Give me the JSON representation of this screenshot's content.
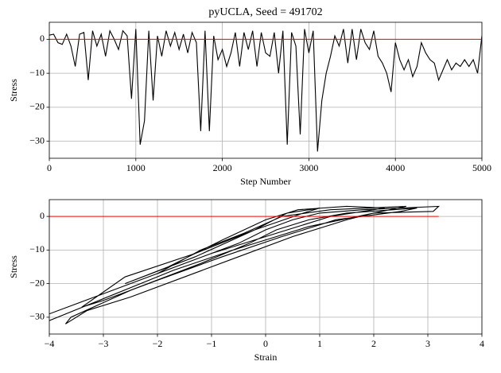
{
  "chart_data": [
    {
      "type": "line",
      "title": "pyUCLA, Seed = 491702",
      "xlabel": "Step Number",
      "ylabel": "Stress",
      "xlim": [
        0,
        5000
      ],
      "ylim": [
        -35,
        5
      ],
      "xticks": [
        0,
        1000,
        2000,
        3000,
        4000,
        5000
      ],
      "yticks": [
        {
          "value": -30,
          "label": "−30"
        },
        {
          "value": -20,
          "label": "−20"
        },
        {
          "value": -10,
          "label": "−10"
        },
        0
      ],
      "grid": true,
      "series": [
        {
          "color": "#000000",
          "x": [
            0,
            50,
            100,
            150,
            200,
            250,
            300,
            350,
            400,
            450,
            500,
            550,
            600,
            650,
            700,
            750,
            800,
            850,
            900,
            950,
            1000,
            1050,
            1100,
            1150,
            1200,
            1250,
            1300,
            1350,
            1400,
            1450,
            1500,
            1550,
            1600,
            1650,
            1700,
            1750,
            1800,
            1850,
            1900,
            1950,
            2000,
            2050,
            2100,
            2150,
            2200,
            2250,
            2300,
            2350,
            2400,
            2450,
            2500,
            2550,
            2600,
            2650,
            2700,
            2750,
            2800,
            2850,
            2900,
            2950,
            3000,
            3050,
            3100,
            3150,
            3200,
            3250,
            3300,
            3350,
            3400,
            3450,
            3500,
            3550,
            3600,
            3650,
            3700,
            3750,
            3800,
            3850,
            3900,
            3950,
            4000,
            4050,
            4100,
            4150,
            4200,
            4250,
            4300,
            4350,
            4400,
            4450,
            4500,
            4550,
            4600,
            4650,
            4700,
            4750,
            4800,
            4850,
            4900,
            4950,
            5000
          ],
          "values": [
            1.2,
            1.5,
            -1,
            -1.5,
            1.5,
            -2,
            -8,
            1.5,
            2,
            -12,
            2.5,
            -2,
            1.5,
            -5,
            2.5,
            0,
            -3,
            2.5,
            1,
            -17.5,
            3,
            -31,
            -24,
            2.5,
            -18,
            1,
            -5,
            2.5,
            -2,
            2,
            -3,
            1.5,
            -4,
            2,
            -1,
            -27,
            2.5,
            -27,
            1,
            -6,
            -3,
            -8,
            -4,
            2,
            -8,
            2,
            -3,
            2.5,
            -8,
            2,
            -4,
            -5,
            2,
            -10,
            2.5,
            -31,
            2,
            -2,
            -28,
            3,
            -4,
            2.5,
            -33,
            -18,
            -10,
            -5,
            1,
            -2,
            3,
            -7,
            3,
            -6,
            3,
            -1,
            -3,
            2.5,
            -5,
            -7,
            -10,
            -15.5,
            -1,
            -6,
            -9,
            -6,
            -11,
            -8,
            -1,
            -4,
            -6,
            -7,
            -12,
            -9,
            -6,
            -9,
            -7,
            -8,
            -6,
            -8,
            -6,
            -10,
            1
          ]
        },
        {
          "color": "#ff0000",
          "x": [
            0,
            5000
          ],
          "values": [
            0,
            0
          ]
        }
      ]
    },
    {
      "type": "line",
      "xlabel": "Strain",
      "ylabel": "Stress",
      "xlim": [
        -4,
        4
      ],
      "ylim": [
        -35,
        5
      ],
      "xticks": [
        {
          "value": -4,
          "label": "−4"
        },
        {
          "value": -3,
          "label": "−3"
        },
        {
          "value": -2,
          "label": "−2"
        },
        {
          "value": -1,
          "label": "−1"
        },
        0,
        1,
        2,
        3,
        4
      ],
      "yticks": [
        {
          "value": -30,
          "label": "−30"
        },
        {
          "value": -20,
          "label": "−20"
        },
        {
          "value": -10,
          "label": "−10"
        },
        0
      ],
      "grid": true,
      "series": [
        {
          "color": "#000000",
          "x": [
            -4,
            -2.5,
            -1.5,
            -0.5,
            0,
            0.5,
            1,
            1.8,
            3.2,
            3.1,
            2,
            1.5,
            0.5,
            -0.5,
            -1.5,
            -2.5,
            -3.3,
            -3.7,
            -3.6,
            -2.5,
            -1.2,
            -0.3,
            0.2,
            0.8,
            1.5,
            2.8,
            2.5,
            1.3,
            0.3,
            -0.8,
            -2,
            -3,
            -3.4,
            -2.6,
            -1.3,
            -0.2,
            0.4,
            1,
            0.7,
            -0.2,
            -1.3,
            -2.6,
            -1.8,
            -0.8,
            0,
            0.6,
            1.5,
            2.2,
            1.2,
            0,
            -1,
            -2,
            -1.2,
            -0.4,
            0.3,
            1.2,
            2.6,
            2,
            0.8,
            -0.6,
            -1.7,
            -4
          ],
          "values": [
            -29,
            -20,
            -14,
            -8,
            -4,
            -1,
            1,
            2,
            3,
            1.5,
            1,
            -1,
            -6,
            -12,
            -18,
            -24,
            -28,
            -32,
            -30,
            -22,
            -14,
            -8,
            -4,
            -1,
            1,
            2.5,
            1.5,
            -1,
            -6,
            -12,
            -19,
            -25,
            -27,
            -18,
            -11,
            -4,
            1,
            2.5,
            1,
            -4,
            -12,
            -20,
            -15,
            -7,
            -1,
            2,
            3,
            2.5,
            0,
            -6,
            -11,
            -17,
            -10,
            -5,
            0,
            2,
            3,
            1,
            -3,
            -10,
            -16,
            -31
          ]
        },
        {
          "color": "#ff0000",
          "x": [
            -4,
            3.2
          ],
          "values": [
            0,
            0
          ]
        }
      ]
    }
  ]
}
